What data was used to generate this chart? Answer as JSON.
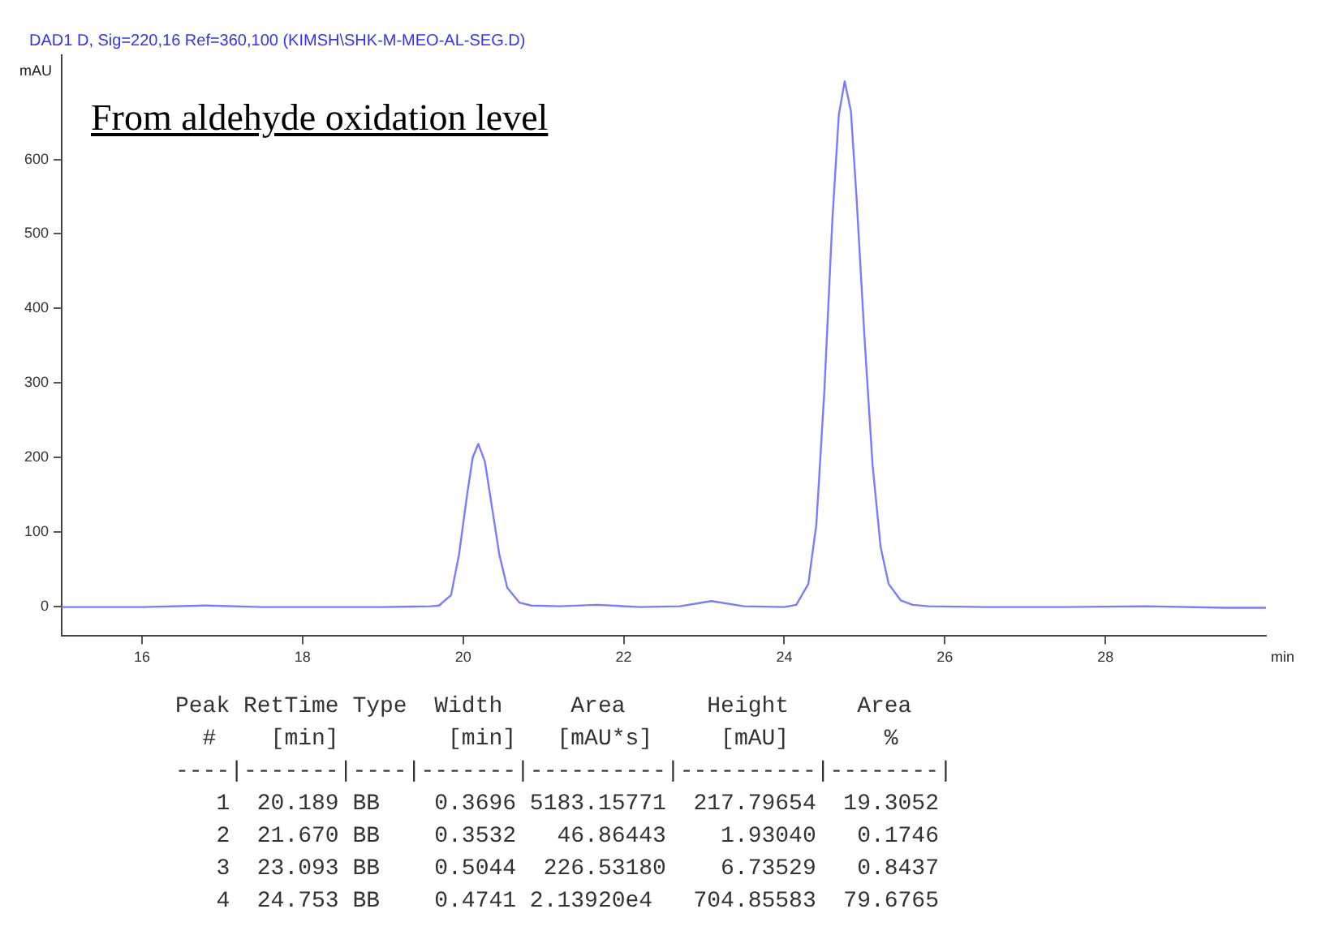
{
  "chart_data": {
    "type": "line",
    "title": "From aldehyde oxidation level",
    "subtitle": "DAD1 D, Sig=220,16 Ref=360,100 (KIMSH\\SHK-M-MEO-AL-SEG.D)",
    "xlabel": "min",
    "ylabel": "mAU",
    "xlim": [
      15,
      30
    ],
    "xticks": [
      16,
      18,
      20,
      22,
      24,
      26,
      28
    ],
    "ylim": [
      -40,
      740
    ],
    "yticks": [
      0,
      100,
      200,
      300,
      400,
      500,
      600
    ],
    "series": [
      {
        "color": "#7b7bff",
        "x": [
          15,
          16,
          16.8,
          17.5,
          19,
          19.6,
          19.7,
          19.85,
          19.95,
          20.05,
          20.12,
          20.189,
          20.27,
          20.35,
          20.45,
          20.55,
          20.7,
          20.85,
          21.2,
          21.67,
          22.2,
          22.7,
          23.093,
          23.5,
          24.0,
          24.15,
          24.3,
          24.4,
          24.5,
          24.6,
          24.68,
          24.753,
          24.83,
          24.9,
          25.0,
          25.1,
          25.2,
          25.3,
          25.45,
          25.6,
          25.8,
          26.5,
          27.5,
          28.5,
          29.5,
          30
        ],
        "values": [
          -1,
          -1,
          1,
          -1,
          -1,
          0,
          1,
          15,
          70,
          150,
          200,
          218,
          195,
          140,
          70,
          25,
          5,
          1,
          0,
          2,
          -1,
          0,
          7,
          0,
          -1,
          2,
          30,
          110,
          290,
          520,
          660,
          705,
          665,
          550,
          360,
          190,
          80,
          30,
          8,
          2,
          0,
          -1,
          -1,
          0,
          -2,
          -2
        ]
      }
    ],
    "annotations": [
      "Peak RetTime Type  Width     Area      Height     Area  ",
      "  #    [min]        [min]   [mAU*s]     [mAU]       %   ",
      "----|-------|----|-------|----------|----------|--------|",
      "   1  20.189 BB    0.3696 5183.15771  217.79654  19.3052",
      "   2  21.670 BB    0.3532   46.86443    1.93040   0.1746",
      "   3  23.093 BB    0.5044  226.53180    6.73529   0.8437",
      "   4  24.753 BB    0.4741 2.13920e4   704.85583  79.6765"
    ]
  }
}
